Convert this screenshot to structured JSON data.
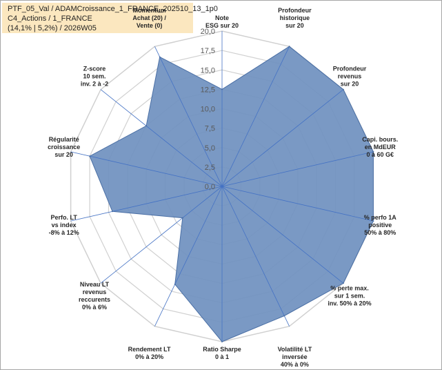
{
  "header": {
    "line1": "PTF_05_Val / ADAMCroissance_1_FRANCE_202510_13_1p0",
    "line2": "C4_Actions / 1_FRANCE",
    "line3": "(14,1% | 5,2%) / 2026W05"
  },
  "chart_data": {
    "type": "radar",
    "rmax": 20,
    "ticks": [
      "0,0",
      "2,5",
      "5,0",
      "7,5",
      "10,0",
      "12,5",
      "15,0",
      "17,5",
      "20,0"
    ],
    "axes": [
      {
        "label": [
          "Note",
          "ESG sur 20"
        ]
      },
      {
        "label": [
          "Profondeur",
          "historique",
          "sur 20"
        ]
      },
      {
        "label": [
          "Profondeur",
          "revenus",
          "sur 20"
        ]
      },
      {
        "label": [
          "Capi. bours.",
          "en MdEUR",
          "0 à 60 G€"
        ]
      },
      {
        "label": [
          "% perfo 1A",
          "positive",
          "50% à 80%"
        ]
      },
      {
        "label": [
          "% perte max.",
          "sur 1 sem.",
          "inv. 50% à 20%"
        ]
      },
      {
        "label": [
          "Volatilité LT",
          "inversée",
          "40% à 0%"
        ]
      },
      {
        "label": [
          "Ratio Sharpe",
          "0 à 1"
        ]
      },
      {
        "label": [
          "Rendement LT",
          "0% à 20%"
        ]
      },
      {
        "label": [
          "Niveau LT",
          "revenus",
          "reccurents",
          "0% à 6%"
        ]
      },
      {
        "label": [
          "Perfo. LT",
          "vs index",
          "-8% à 12%"
        ]
      },
      {
        "label": [
          "Régularité",
          "croissance",
          "sur 20"
        ]
      },
      {
        "label": [
          "Z-score",
          "10 sem.",
          "inv. 2 à -2"
        ]
      },
      {
        "label": [
          "Momentum",
          "Achat (20) /",
          "Vente (0)"
        ]
      }
    ],
    "series": [
      {
        "values": [
          12.5,
          20,
          20,
          20,
          20,
          20,
          18.5,
          20,
          14,
          6.5,
          14.5,
          17.5,
          12.5,
          18.5
        ]
      }
    ],
    "colors": {
      "fill": "#6f90bf",
      "stroke": "#4a6fa5",
      "grid": "#d0d0d0",
      "spoke": "#4472c4"
    }
  }
}
